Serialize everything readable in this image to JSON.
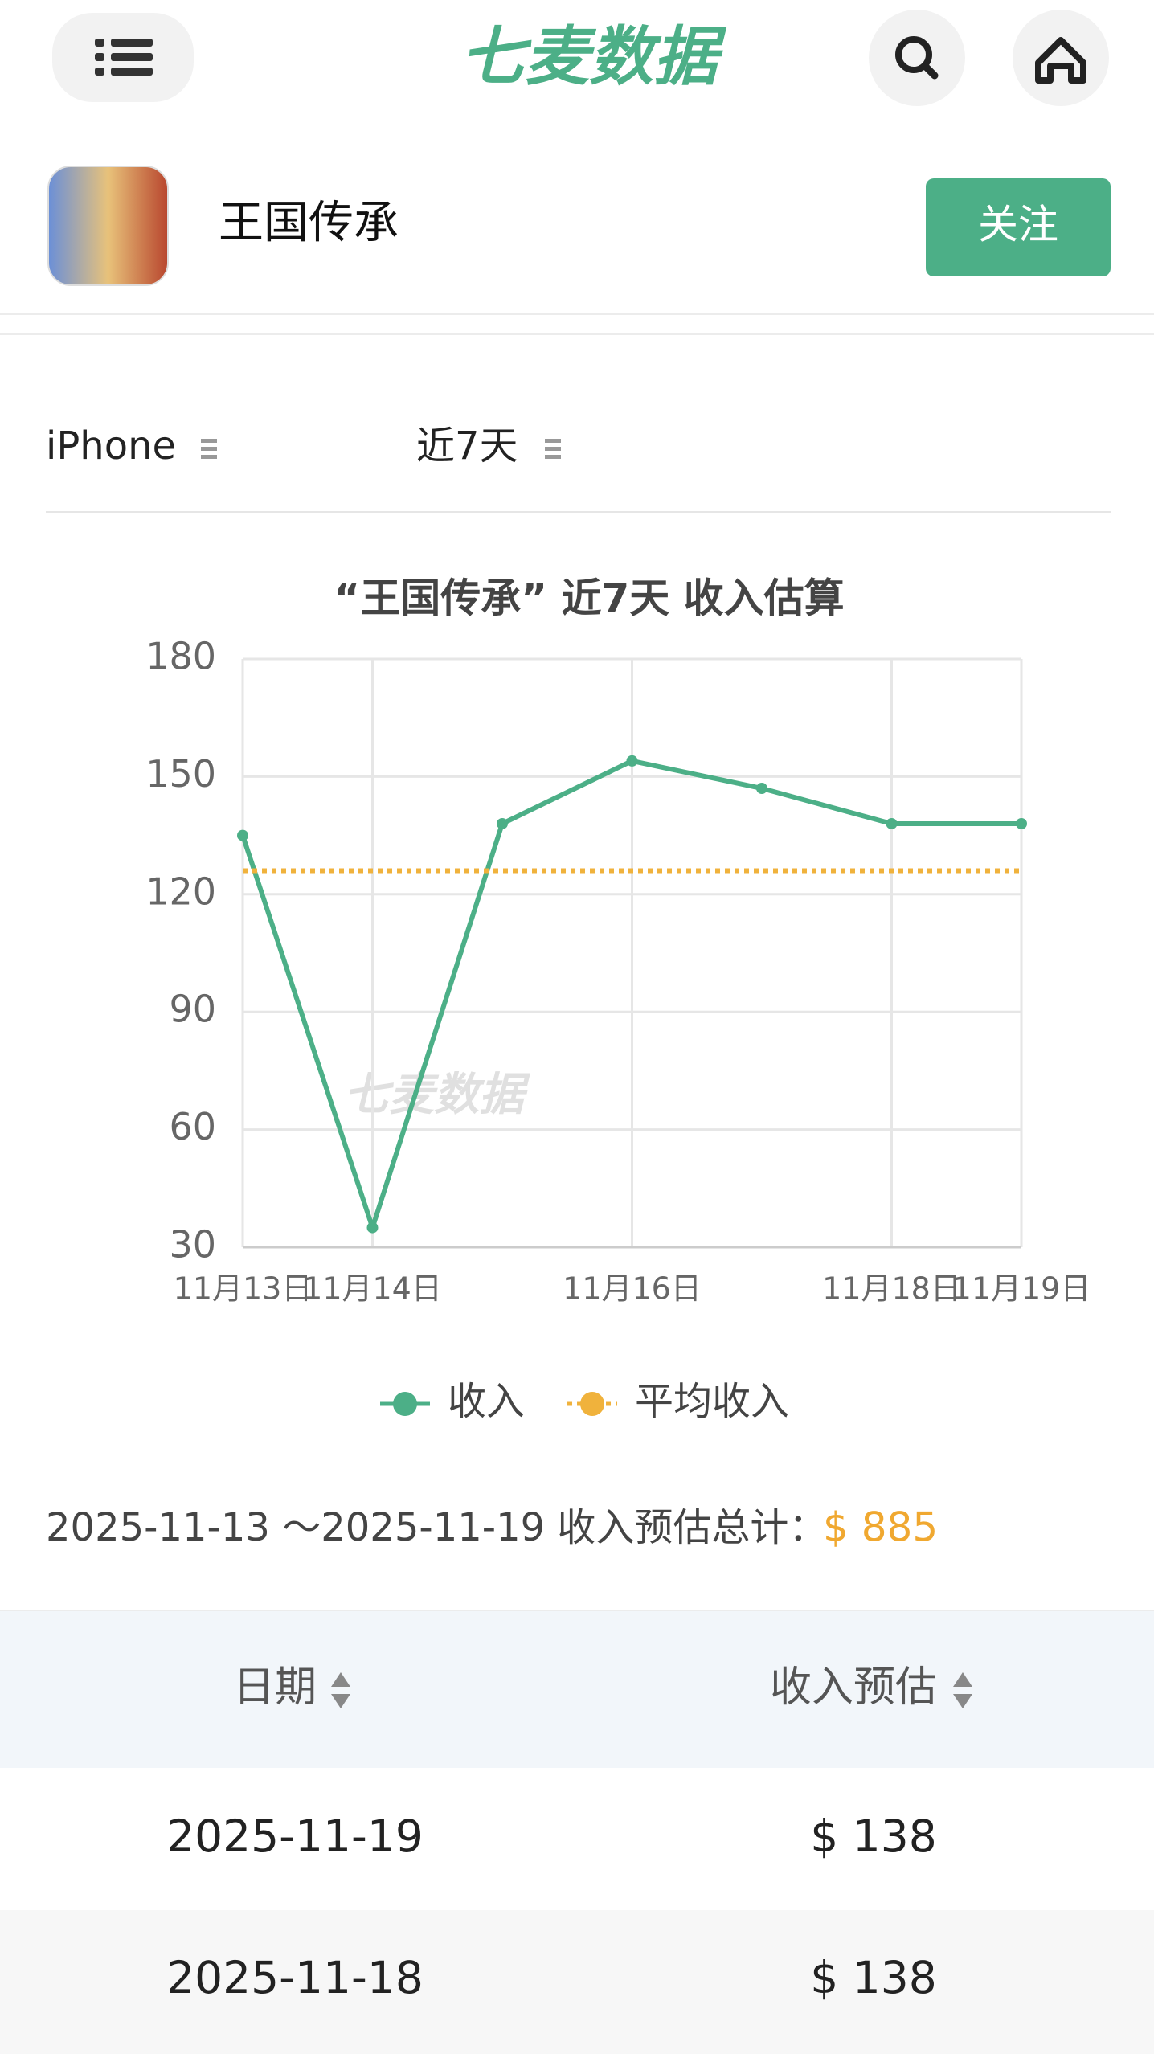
{
  "header": {
    "logo": "七麦数据"
  },
  "app": {
    "name": "王国传承",
    "follow": "关注"
  },
  "filters": {
    "device": "iPhone",
    "period": "近7天"
  },
  "chart_data": {
    "type": "line",
    "title": "“王国传承” 近7天 收入估算",
    "watermark": "七麦数据",
    "categories": [
      "11月13日",
      "11月14日",
      null,
      "11月16日",
      null,
      "11月18日",
      "11月19日"
    ],
    "series": [
      {
        "name": "收入",
        "color": "#4caf87",
        "line_style": "solid",
        "markers": true,
        "values": [
          135,
          35,
          138,
          154,
          147,
          138,
          138
        ]
      },
      {
        "name": "平均收入",
        "color": "#f0b23c",
        "line_style": "dotted",
        "markers": false,
        "values": [
          126,
          126,
          126,
          126,
          126,
          126,
          126
        ]
      }
    ],
    "ylim": [
      30,
      180
    ],
    "yticks": [
      30,
      60,
      90,
      120,
      150,
      180
    ],
    "grid": true,
    "legend": "bottom"
  },
  "summary": {
    "range": "2025-11-13 ～2025-11-19 收入预估总计：",
    "total": "$ 885"
  },
  "table": {
    "columns": [
      "日期",
      "收入预估"
    ],
    "rows": [
      [
        "2025-11-19",
        "$ 138"
      ],
      [
        "2025-11-18",
        "$ 138"
      ]
    ]
  }
}
